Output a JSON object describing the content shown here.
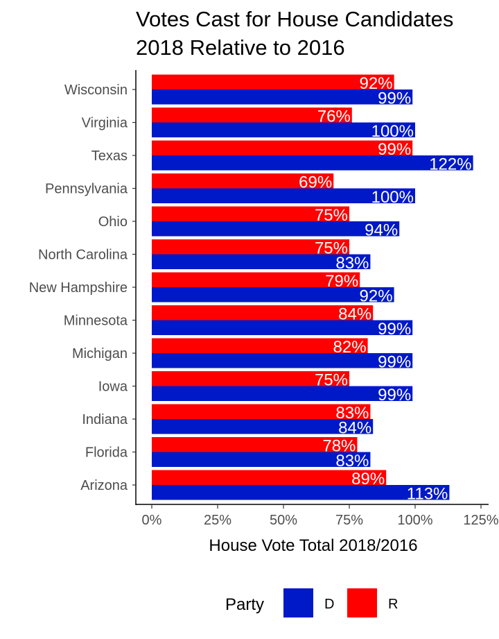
{
  "chart_data": {
    "type": "bar",
    "orientation": "horizontal",
    "title_lines": [
      "Votes Cast for House Candidates",
      "2018 Relative to 2016"
    ],
    "xlabel": "House Vote Total 2018/2016",
    "ylabel": "",
    "xlim": [
      0,
      1.25
    ],
    "x_ticks": [
      {
        "value": 0,
        "label": "0%"
      },
      {
        "value": 0.25,
        "label": "25%"
      },
      {
        "value": 0.5,
        "label": "50%"
      },
      {
        "value": 0.75,
        "label": "75%"
      },
      {
        "value": 1.0,
        "label": "100%"
      },
      {
        "value": 1.25,
        "label": "125%"
      }
    ],
    "grid": false,
    "legend_position": "bottom",
    "legend_title": "Party",
    "categories": [
      "Wisconsin",
      "Virginia",
      "Texas",
      "Pennsylvania",
      "Ohio",
      "North Carolina",
      "New Hampshire",
      "Minnesota",
      "Michigan",
      "Iowa",
      "Indiana",
      "Florida",
      "Arizona"
    ],
    "series": [
      {
        "name": "R",
        "color": "#ff0000",
        "values": [
          0.92,
          0.76,
          0.99,
          0.69,
          0.75,
          0.75,
          0.79,
          0.84,
          0.82,
          0.75,
          0.83,
          0.78,
          0.89
        ],
        "labels": [
          "92%",
          "76%",
          "99%",
          "69%",
          "75%",
          "75%",
          "79%",
          "84%",
          "82%",
          "75%",
          "83%",
          "78%",
          "89%"
        ]
      },
      {
        "name": "D",
        "color": "#0019c8",
        "values": [
          0.99,
          1.0,
          1.22,
          1.0,
          0.94,
          0.83,
          0.92,
          0.99,
          0.99,
          0.99,
          0.84,
          0.83,
          1.13
        ],
        "labels": [
          "99%",
          "100%",
          "122%",
          "100%",
          "94%",
          "83%",
          "92%",
          "99%",
          "99%",
          "99%",
          "84%",
          "83%",
          "113%"
        ]
      }
    ],
    "legend_order": [
      "D",
      "R"
    ]
  }
}
